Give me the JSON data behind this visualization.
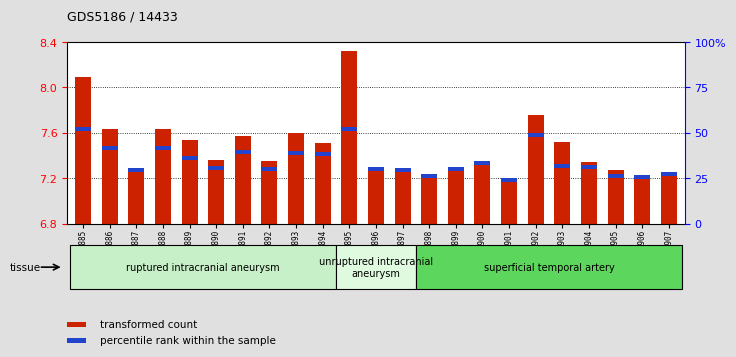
{
  "title": "GDS5186 / 14433",
  "samples": [
    "GSM1306885",
    "GSM1306886",
    "GSM1306887",
    "GSM1306888",
    "GSM1306889",
    "GSM1306890",
    "GSM1306891",
    "GSM1306892",
    "GSM1306893",
    "GSM1306894",
    "GSM1306895",
    "GSM1306896",
    "GSM1306897",
    "GSM1306898",
    "GSM1306899",
    "GSM1306900",
    "GSM1306901",
    "GSM1306902",
    "GSM1306903",
    "GSM1306904",
    "GSM1306905",
    "GSM1306906",
    "GSM1306907"
  ],
  "red_values": [
    8.09,
    7.63,
    7.26,
    7.63,
    7.54,
    7.36,
    7.57,
    7.35,
    7.6,
    7.51,
    8.32,
    7.27,
    7.27,
    7.21,
    7.27,
    7.32,
    7.17,
    7.76,
    7.52,
    7.34,
    7.27,
    7.21,
    7.24
  ],
  "blue_values": [
    7.63,
    7.47,
    7.27,
    7.47,
    7.38,
    7.29,
    7.43,
    7.28,
    7.42,
    7.41,
    7.63,
    7.28,
    7.27,
    7.22,
    7.28,
    7.33,
    7.18,
    7.58,
    7.31,
    7.3,
    7.22,
    7.21,
    7.24
  ],
  "ylim_left": [
    6.8,
    8.4
  ],
  "ylim_right": [
    0,
    100
  ],
  "yticks_left": [
    6.8,
    7.2,
    7.6,
    8.0,
    8.4
  ],
  "yticks_right": [
    0,
    25,
    50,
    75,
    100
  ],
  "ytick_labels_right": [
    "0",
    "25",
    "50",
    "75",
    "100%"
  ],
  "groups": [
    {
      "label": "ruptured intracranial aneurysm",
      "start": 0,
      "end": 10,
      "color": "#c8f0c8"
    },
    {
      "label": "unruptured intracranial\naneurysm",
      "start": 10,
      "end": 13,
      "color": "#dffadf"
    },
    {
      "label": "superficial temporal artery",
      "start": 13,
      "end": 23,
      "color": "#5cd65c"
    }
  ],
  "bar_color": "#cc2200",
  "blue_color": "#2244cc",
  "bar_width": 0.6,
  "background_color": "#e0e0e0",
  "plot_bg_color": "#ffffff",
  "tissue_label": "tissue",
  "legend_items": [
    {
      "label": "transformed count",
      "color": "#cc2200"
    },
    {
      "label": "percentile rank within the sample",
      "color": "#2244cc"
    }
  ]
}
